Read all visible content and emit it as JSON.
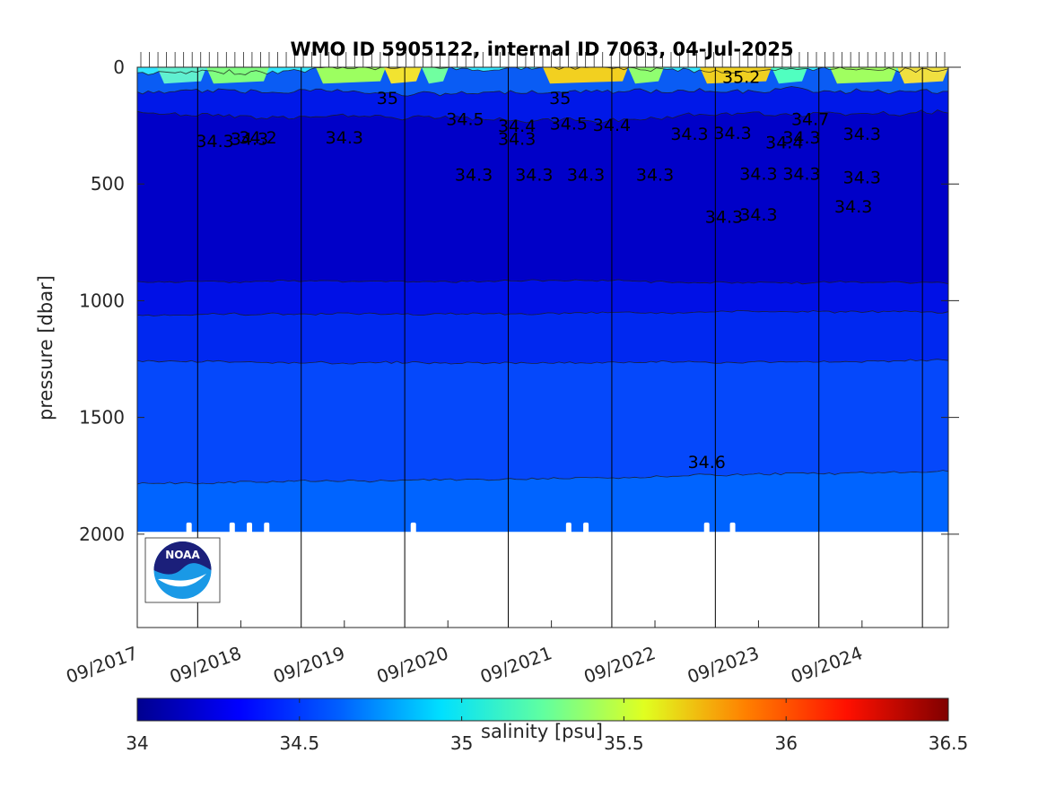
{
  "chart_data": {
    "type": "heatmap",
    "title": "WMO ID 5905122, internal ID 7063, 04-Jul-2025",
    "xlabel": "",
    "ylabel": "pressure [dbar]",
    "x_tick_labels": [
      "09/2017",
      "09/2018",
      "09/2019",
      "09/2020",
      "09/2021",
      "09/2022",
      "09/2023",
      "09/2024"
    ],
    "x_range": [
      "09/2017",
      "06/2025"
    ],
    "y_tick_labels": [
      "0",
      "500",
      "1000",
      "1500",
      "2000"
    ],
    "y_ticks": [
      0,
      500,
      1000,
      1500,
      2000
    ],
    "ylim": [
      0,
      2400
    ],
    "y_reversed": true,
    "data_bottom_pressure": 1990,
    "colorbar": {
      "label": "salinity [psu]",
      "tick_labels": [
        "34",
        "34.5",
        "35",
        "35.5",
        "36",
        "36.5"
      ],
      "ticks": [
        34,
        34.5,
        35,
        35.5,
        36,
        36.5
      ],
      "range": [
        34,
        36.5
      ],
      "colormap": "jet",
      "colors": [
        "#00008f",
        "#0000ff",
        "#0080ff",
        "#00ffff",
        "#80ff80",
        "#ffff00",
        "#ff8000",
        "#ff0000",
        "#800000"
      ]
    },
    "salinity_layers": [
      {
        "from_pressure": 0,
        "salinity": 35.0,
        "color": "#31e6ff"
      },
      {
        "from_pressure": 30,
        "salinity": 34.7,
        "color": "#0a5cf4"
      },
      {
        "from_pressure": 110,
        "salinity": 34.5,
        "color": "#0018e8"
      },
      {
        "from_pressure": 200,
        "salinity": 34.35,
        "color": "#0000c8"
      },
      {
        "from_pressure": 920,
        "salinity": 34.4,
        "color": "#0010e6"
      },
      {
        "from_pressure": 1060,
        "salinity": 34.45,
        "color": "#0028f0"
      },
      {
        "from_pressure": 1260,
        "salinity": 34.55,
        "color": "#0548fb"
      },
      {
        "from_pressure": 1780,
        "salinity": 34.6,
        "color": "#0064ff"
      }
    ],
    "contour_labels": [
      {
        "text": "34.3",
        "x": "2018-06",
        "y": 315
      },
      {
        "text": "34.3",
        "x": "2018-10",
        "y": 305
      },
      {
        "text": "34.3",
        "x": "2019-09",
        "y": 300
      },
      {
        "text": "34.3",
        "x": "2021-05",
        "y": 305
      },
      {
        "text": "34.3",
        "x": "2023-01",
        "y": 285
      },
      {
        "text": "34.3",
        "x": "2023-06",
        "y": 280
      },
      {
        "text": "34.3",
        "x": "2024-02",
        "y": 300
      },
      {
        "text": "34.3",
        "x": "2024-09",
        "y": 285
      },
      {
        "text": "34.6",
        "x": "2023-03",
        "y": 1690
      },
      {
        "text": "34.3",
        "x": "2020-12",
        "y": 458
      },
      {
        "text": "34.3",
        "x": "2021-07",
        "y": 458
      },
      {
        "text": "34.3",
        "x": "2022-01",
        "y": 458
      },
      {
        "text": "34.3",
        "x": "2022-09",
        "y": 458
      },
      {
        "text": "34.3",
        "x": "2023-09",
        "y": 455
      },
      {
        "text": "34.3",
        "x": "2024-02",
        "y": 455
      },
      {
        "text": "34.3",
        "x": "2024-09",
        "y": 470
      },
      {
        "text": "34.3",
        "x": "2023-05",
        "y": 640
      },
      {
        "text": "34.3",
        "x": "2023-09",
        "y": 630
      },
      {
        "text": "34.3",
        "x": "2024-08",
        "y": 595
      },
      {
        "text": "34.2",
        "x": "2018-11",
        "y": 300
      },
      {
        "text": "34.4",
        "x": "2021-05",
        "y": 250
      },
      {
        "text": "34.4",
        "x": "2022-04",
        "y": 245
      },
      {
        "text": "34.4",
        "x": "2023-12",
        "y": 320
      },
      {
        "text": "34.5",
        "x": "2020-11",
        "y": 220
      },
      {
        "text": "34.5",
        "x": "2021-11",
        "y": 240
      },
      {
        "text": "34.7",
        "x": "2024-03",
        "y": 220
      },
      {
        "text": "35",
        "x": "2020-02",
        "y": 130
      },
      {
        "text": "35",
        "x": "2021-10",
        "y": 130
      },
      {
        "text": "35.2",
        "x": "2023-07",
        "y": 40
      }
    ],
    "logo": {
      "name": "NOAA",
      "text": "NOAA"
    }
  }
}
